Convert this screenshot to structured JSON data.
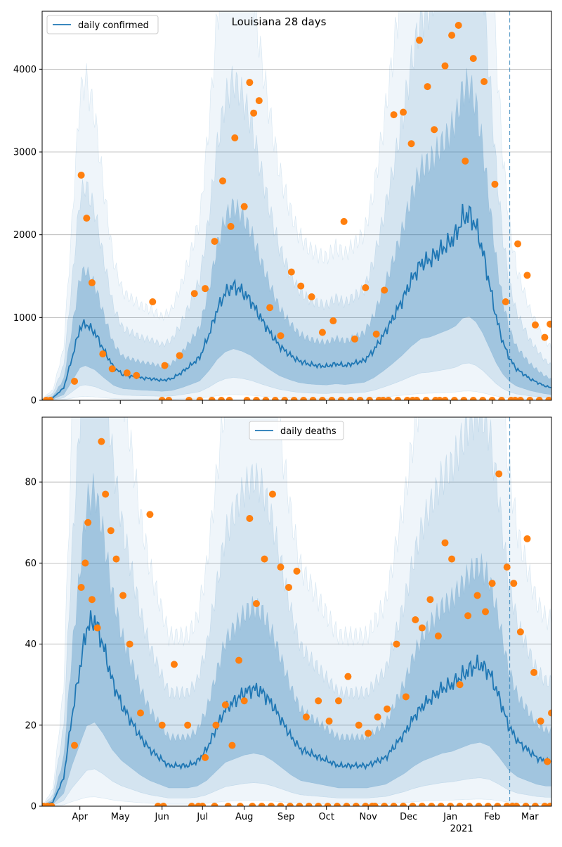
{
  "title": "Louisiana 28 days",
  "colors": {
    "line": "#1f77b4",
    "band": "#1f77b4",
    "points": "#ff7f0e",
    "grid": "#b0b0b0",
    "vline": "#1f77b4"
  },
  "x_axis": {
    "months": [
      "Apr",
      "May",
      "Jun",
      "Jul",
      "Aug",
      "Sep",
      "Oct",
      "Nov",
      "Dec",
      "Jan",
      "Feb",
      "Mar"
    ],
    "year_label": "2021",
    "range": [
      "2020-03-04",
      "2021-03-17"
    ],
    "forecast_date": "2021-02-14"
  },
  "chart_data": [
    {
      "type": "line",
      "legend": "daily confirmed",
      "legend_position": "top-left",
      "ylim": [
        0,
        4700
      ],
      "yticks": [
        0,
        1000,
        2000,
        3000,
        4000
      ],
      "grid": "horizontal",
      "line": {
        "x": [
          "2020-03-04",
          "2020-03-12",
          "2020-03-20",
          "2020-03-26",
          "2020-04-01",
          "2020-04-05",
          "2020-04-12",
          "2020-04-19",
          "2020-04-26",
          "2020-05-03",
          "2020-05-10",
          "2020-05-17",
          "2020-05-24",
          "2020-06-01",
          "2020-06-08",
          "2020-06-15",
          "2020-06-22",
          "2020-06-29",
          "2020-07-06",
          "2020-07-12",
          "2020-07-18",
          "2020-07-24",
          "2020-07-30",
          "2020-08-06",
          "2020-08-13",
          "2020-08-20",
          "2020-08-27",
          "2020-09-03",
          "2020-09-10",
          "2020-09-17",
          "2020-09-24",
          "2020-10-01",
          "2020-10-08",
          "2020-10-15",
          "2020-10-22",
          "2020-10-29",
          "2020-11-05",
          "2020-11-12",
          "2020-11-19",
          "2020-11-26",
          "2020-12-03",
          "2020-12-10",
          "2020-12-17",
          "2020-12-24",
          "2020-12-31",
          "2021-01-05",
          "2021-01-10",
          "2021-01-15",
          "2021-01-20",
          "2021-01-25",
          "2021-01-30",
          "2021-02-04",
          "2021-02-09",
          "2021-02-14",
          "2021-02-19",
          "2021-02-24",
          "2021-03-01",
          "2021-03-06",
          "2021-03-11",
          "2021-03-17"
        ],
        "y": [
          5,
          30,
          150,
          500,
          870,
          930,
          820,
          600,
          400,
          310,
          290,
          270,
          260,
          240,
          260,
          330,
          420,
          520,
          800,
          1100,
          1300,
          1380,
          1320,
          1200,
          1000,
          820,
          660,
          560,
          480,
          440,
          420,
          410,
          440,
          420,
          450,
          480,
          600,
          780,
          980,
          1200,
          1450,
          1650,
          1700,
          1800,
          1900,
          2000,
          2200,
          2250,
          2100,
          1800,
          1400,
          1000,
          700,
          500,
          380,
          320,
          260,
          220,
          180,
          150
        ]
      },
      "points": {
        "x": [
          "2020-03-28",
          "2020-04-02",
          "2020-04-06",
          "2020-04-10",
          "2020-04-18",
          "2020-04-25",
          "2020-05-06",
          "2020-05-13",
          "2020-05-25",
          "2020-06-03",
          "2020-06-14",
          "2020-06-25",
          "2020-07-03",
          "2020-07-10",
          "2020-07-16",
          "2020-07-22",
          "2020-07-25",
          "2020-08-01",
          "2020-08-05",
          "2020-08-08",
          "2020-08-12",
          "2020-08-20",
          "2020-08-28",
          "2020-09-05",
          "2020-09-12",
          "2020-09-20",
          "2020-09-28",
          "2020-10-06",
          "2020-10-14",
          "2020-10-22",
          "2020-10-30",
          "2020-11-07",
          "2020-11-13",
          "2020-11-20",
          "2020-11-27",
          "2020-12-03",
          "2020-12-09",
          "2020-12-15",
          "2020-12-20",
          "2020-12-28",
          "2021-01-02",
          "2021-01-07",
          "2021-01-12",
          "2021-01-18",
          "2021-01-26",
          "2021-02-03",
          "2021-02-11",
          "2021-02-20",
          "2021-02-27",
          "2021-03-05",
          "2021-03-12",
          "2021-03-16"
        ],
        "y": [
          230,
          2720,
          2200,
          1420,
          560,
          380,
          330,
          300,
          1190,
          420,
          540,
          1290,
          1350,
          1920,
          2650,
          2100,
          3170,
          2340,
          3840,
          3470,
          3620,
          1120,
          780,
          1550,
          1380,
          1250,
          820,
          960,
          2160,
          740,
          1360,
          800,
          1330,
          3450,
          3480,
          3100,
          4350,
          3790,
          3270,
          4040,
          4410,
          4530,
          2890,
          4130,
          3850,
          2610,
          1190,
          1890,
          1510,
          910,
          760,
          920
        ]
      },
      "baseline_points": {
        "x": [
          "2020-03-07",
          "2020-03-10",
          "2020-06-01",
          "2020-06-06",
          "2020-06-21",
          "2020-06-29",
          "2020-07-08",
          "2020-07-15",
          "2020-07-21",
          "2020-08-03",
          "2020-08-10",
          "2020-08-17",
          "2020-08-24",
          "2020-08-31",
          "2020-09-07",
          "2020-09-14",
          "2020-09-21",
          "2020-09-28",
          "2020-10-05",
          "2020-10-12",
          "2020-10-19",
          "2020-10-26",
          "2020-11-02",
          "2020-11-09",
          "2020-11-12",
          "2020-11-16",
          "2020-11-23",
          "2020-11-30",
          "2020-12-04",
          "2020-12-07",
          "2020-12-14",
          "2020-12-21",
          "2020-12-24",
          "2020-12-28",
          "2021-01-04",
          "2021-01-11",
          "2021-01-18",
          "2021-01-25",
          "2021-02-01",
          "2021-02-08",
          "2021-02-15",
          "2021-02-18",
          "2021-02-22",
          "2021-03-01",
          "2021-03-08",
          "2021-03-15"
        ],
        "y": [
          0,
          0,
          0,
          0,
          0,
          0,
          0,
          0,
          0,
          0,
          0,
          0,
          0,
          0,
          0,
          0,
          0,
          0,
          0,
          0,
          0,
          0,
          0,
          0,
          0,
          0,
          0,
          0,
          0,
          0,
          0,
          0,
          0,
          0,
          0,
          0,
          0,
          0,
          0,
          0,
          0,
          0,
          0,
          0,
          0,
          0
        ]
      }
    },
    {
      "type": "line",
      "legend": "daily deaths",
      "legend_position": "top-center",
      "ylim": [
        0,
        96
      ],
      "yticks": [
        0,
        20,
        40,
        60,
        80
      ],
      "grid": "horizontal",
      "line": {
        "x": [
          "2020-03-04",
          "2020-03-12",
          "2020-03-20",
          "2020-03-26",
          "2020-04-01",
          "2020-04-06",
          "2020-04-12",
          "2020-04-18",
          "2020-04-25",
          "2020-05-02",
          "2020-05-09",
          "2020-05-16",
          "2020-05-23",
          "2020-05-30",
          "2020-06-06",
          "2020-06-13",
          "2020-06-20",
          "2020-06-27",
          "2020-07-04",
          "2020-07-11",
          "2020-07-18",
          "2020-07-25",
          "2020-08-01",
          "2020-08-08",
          "2020-08-15",
          "2020-08-22",
          "2020-08-29",
          "2020-09-05",
          "2020-09-12",
          "2020-09-19",
          "2020-09-26",
          "2020-10-03",
          "2020-10-10",
          "2020-10-17",
          "2020-10-24",
          "2020-10-31",
          "2020-11-07",
          "2020-11-14",
          "2020-11-21",
          "2020-11-28",
          "2020-12-05",
          "2020-12-12",
          "2020-12-19",
          "2020-12-26",
          "2021-01-02",
          "2021-01-09",
          "2021-01-16",
          "2021-01-23",
          "2021-01-30",
          "2021-02-06",
          "2021-02-13",
          "2021-02-20",
          "2021-02-27",
          "2021-03-06",
          "2021-03-13",
          "2021-03-17"
        ],
        "y": [
          0,
          1,
          7,
          22,
          34,
          44,
          46,
          40,
          31,
          25,
          21,
          17,
          14,
          12,
          10,
          10,
          10,
          11,
          14,
          19,
          24,
          26,
          28,
          29,
          28,
          25,
          21,
          17,
          14,
          13,
          12,
          11,
          10,
          10,
          10,
          10,
          11,
          12,
          15,
          18,
          22,
          25,
          27,
          29,
          30,
          32,
          34,
          35,
          33,
          27,
          20,
          16,
          14,
          12,
          11,
          11
        ]
      },
      "points": {
        "x": [
          "2020-03-28",
          "2020-04-02",
          "2020-04-05",
          "2020-04-07",
          "2020-04-10",
          "2020-04-14",
          "2020-04-17",
          "2020-04-20",
          "2020-04-24",
          "2020-04-28",
          "2020-05-03",
          "2020-05-08",
          "2020-05-16",
          "2020-05-23",
          "2020-06-01",
          "2020-06-10",
          "2020-06-20",
          "2020-07-03",
          "2020-07-11",
          "2020-07-18",
          "2020-07-23",
          "2020-07-28",
          "2020-08-01",
          "2020-08-05",
          "2020-08-10",
          "2020-08-16",
          "2020-08-22",
          "2020-08-28",
          "2020-09-03",
          "2020-09-09",
          "2020-09-16",
          "2020-09-25",
          "2020-10-03",
          "2020-10-10",
          "2020-10-17",
          "2020-10-25",
          "2020-11-01",
          "2020-11-08",
          "2020-11-15",
          "2020-11-22",
          "2020-11-29",
          "2020-12-06",
          "2020-12-11",
          "2020-12-17",
          "2020-12-23",
          "2020-12-28",
          "2021-01-02",
          "2021-01-08",
          "2021-01-14",
          "2021-01-21",
          "2021-01-27",
          "2021-02-01",
          "2021-02-06",
          "2021-02-12",
          "2021-02-17",
          "2021-02-22",
          "2021-02-27",
          "2021-03-04",
          "2021-03-09",
          "2021-03-14",
          "2021-03-17"
        ],
        "y": [
          15,
          54,
          60,
          70,
          51,
          44,
          90,
          77,
          68,
          61,
          52,
          40,
          23,
          72,
          20,
          35,
          20,
          12,
          20,
          25,
          15,
          36,
          26,
          71,
          50,
          61,
          77,
          59,
          54,
          58,
          22,
          26,
          21,
          26,
          32,
          20,
          18,
          22,
          24,
          40,
          27,
          46,
          44,
          51,
          42,
          65,
          61,
          30,
          47,
          52,
          48,
          55,
          82,
          59,
          55,
          43,
          66,
          33,
          21,
          11,
          23
        ]
      },
      "baseline_points": {
        "x": [
          "2020-03-05",
          "2020-03-08",
          "2020-03-11",
          "2020-05-29",
          "2020-06-02",
          "2020-06-23",
          "2020-06-28",
          "2020-07-01",
          "2020-07-10",
          "2020-07-20",
          "2020-07-29",
          "2020-08-07",
          "2020-08-14",
          "2020-08-21",
          "2020-08-28",
          "2020-09-04",
          "2020-09-11",
          "2020-09-18",
          "2020-09-25",
          "2020-10-02",
          "2020-10-09",
          "2020-10-16",
          "2020-10-23",
          "2020-10-30",
          "2020-11-04",
          "2020-11-06",
          "2020-11-13",
          "2020-11-20",
          "2020-11-27",
          "2020-12-04",
          "2020-12-11",
          "2020-12-18",
          "2020-12-25",
          "2021-01-01",
          "2021-01-08",
          "2021-01-15",
          "2021-01-22",
          "2021-01-29",
          "2021-02-05",
          "2021-02-12",
          "2021-02-16",
          "2021-02-19",
          "2021-02-26",
          "2021-03-05",
          "2021-03-12",
          "2021-03-16"
        ],
        "y": [
          0,
          0,
          0,
          0,
          0,
          0,
          0,
          0,
          0,
          0,
          0,
          0,
          0,
          0,
          0,
          0,
          0,
          0,
          0,
          0,
          0,
          0,
          0,
          0,
          0,
          0,
          0,
          0,
          0,
          0,
          0,
          0,
          0,
          0,
          0,
          0,
          0,
          0,
          0,
          0,
          0,
          0,
          0,
          0,
          0,
          0
        ]
      }
    }
  ]
}
